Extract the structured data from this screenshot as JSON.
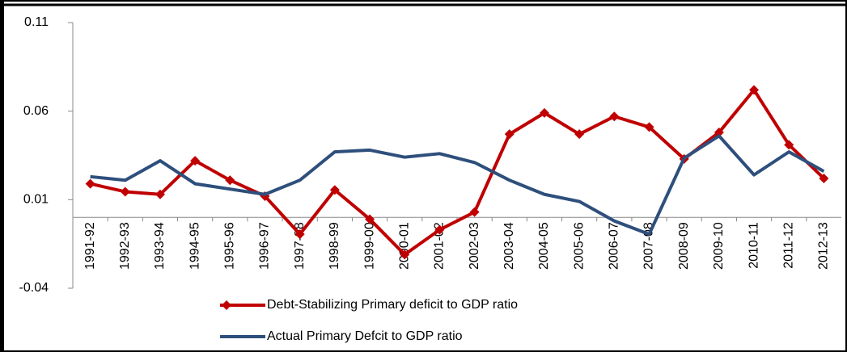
{
  "chart_data": {
    "type": "line",
    "categories": [
      "1991-92",
      "1992-93",
      "1993-94",
      "1994-95",
      "1995-96",
      "1996-97",
      "1997-98",
      "1998-99",
      "1999-00",
      "2000-01",
      "2001-02",
      "2002-03",
      "2003-04",
      "2004-05",
      "2005-06",
      "2006-07",
      "2007-08",
      "2008-09",
      "2009-10",
      "2010-11",
      "2011-12",
      "2012-13"
    ],
    "series": [
      {
        "name": "Debt-Stabilizing Primary deficit to GDP ratio",
        "color": "#c00000",
        "marker": "diamond",
        "values": [
          0.019,
          0.0145,
          0.013,
          0.032,
          0.021,
          0.012,
          -0.0095,
          0.0155,
          -0.001,
          -0.021,
          -0.007,
          0.003,
          0.047,
          0.059,
          0.047,
          0.057,
          0.051,
          0.033,
          0.048,
          0.072,
          0.041,
          0.022
        ]
      },
      {
        "name": "Actual Primary Defcit to GDP ratio",
        "color": "#2e4f7c",
        "marker": "none",
        "values": [
          0.023,
          0.021,
          0.032,
          0.019,
          0.016,
          0.013,
          0.021,
          0.037,
          0.038,
          0.034,
          0.036,
          0.031,
          0.021,
          0.013,
          0.009,
          -0.002,
          -0.0095,
          0.0335,
          0.046,
          0.024,
          0.037,
          0.026
        ]
      }
    ],
    "ylim": [
      -0.04,
      0.11
    ],
    "yticks": [
      -0.04,
      0.01,
      0.06,
      0.11
    ],
    "legend": "bottom"
  }
}
